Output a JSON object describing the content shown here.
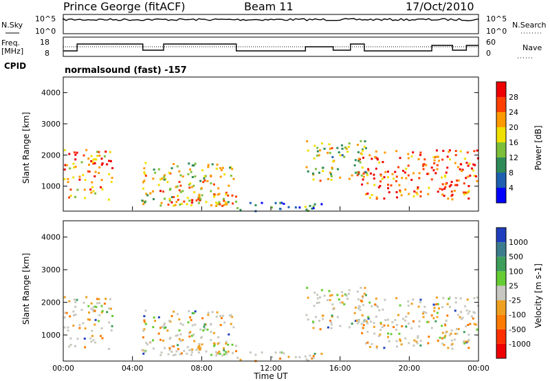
{
  "header": {
    "station": "Prince George (fitACF)",
    "beam": "Beam 11",
    "date": "17/Oct/2010"
  },
  "strips": {
    "nsky_label": "N.Sky",
    "nsky_ticks": [
      "10^5",
      "10^0"
    ],
    "nsearch_label": "N.Search",
    "freq_label": "Freq.",
    "freq_unit": "[MHz]",
    "freq_ticks": [
      "18",
      "8"
    ],
    "nave_label": "Nave",
    "nave_ticks": [
      "60",
      "0"
    ],
    "cpid_label": "CPID",
    "cpid_value": "normalsound (fast) -157"
  },
  "chart_data": [
    {
      "type": "heatmap",
      "name": "power",
      "ylabel": "Slant Range [km]",
      "yticks": [
        "4000",
        "3000",
        "2000",
        "1000"
      ],
      "ylim": [
        200,
        4500
      ],
      "colorbar_label": "Power [dB]",
      "colorbar_ticks": [
        "28",
        "24",
        "20",
        "16",
        "12",
        "8",
        "4"
      ],
      "colorbar_colors": [
        "#0000ff",
        "#1e5fb0",
        "#2e8b57",
        "#7cbf3a",
        "#f0e000",
        "#ff9900",
        "#ff4000",
        "#ee0000"
      ],
      "regions": [
        {
          "t0": 0.0,
          "t1": 2.8,
          "r0": 600,
          "r1": 2200,
          "level": 24
        },
        {
          "t0": 4.5,
          "t1": 9.8,
          "r0": 400,
          "r1": 1800,
          "level": 18
        },
        {
          "t0": 5.5,
          "t1": 10.0,
          "r0": 400,
          "r1": 900,
          "level": 22
        },
        {
          "t0": 10.0,
          "t1": 15.0,
          "r0": 200,
          "r1": 500,
          "level": 8
        },
        {
          "t0": 14.0,
          "t1": 17.5,
          "r0": 1200,
          "r1": 2500,
          "level": 16
        },
        {
          "t0": 17.0,
          "t1": 24.0,
          "r0": 600,
          "r1": 2200,
          "level": 26
        }
      ]
    },
    {
      "type": "heatmap",
      "name": "velocity",
      "ylabel": "Slant Range [km]",
      "yticks": [
        "4000",
        "3000",
        "2000",
        "1000"
      ],
      "ylim": [
        200,
        4500
      ],
      "colorbar_label": "Velocity [m s-1]",
      "colorbar_ticks": [
        "1000",
        "500",
        "100",
        "25",
        "-25",
        "-100",
        "-500",
        "-1000"
      ],
      "colorbar_colors": [
        "#1f3fbf",
        "#3c7c8c",
        "#3c9e5a",
        "#66cc33",
        "#c8c8c0",
        "#f0a020",
        "#ff7a00",
        "#ff3000",
        "#ee0000"
      ],
      "xlabel": "Time UT",
      "xticks": [
        "00:00",
        "04:00",
        "08:00",
        "12:00",
        "16:00",
        "20:00",
        "00:00"
      ],
      "xlim": [
        0,
        24
      ]
    }
  ]
}
